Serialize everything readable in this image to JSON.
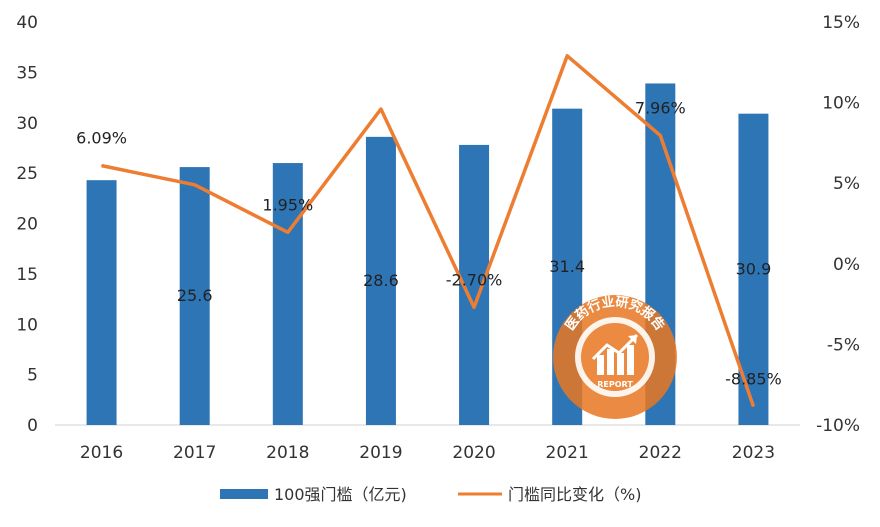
{
  "chart_data": {
    "type": "bar",
    "categories": [
      "2016",
      "2017",
      "2018",
      "2019",
      "2020",
      "2021",
      "2022",
      "2023"
    ],
    "series": [
      {
        "name": "100强门槛（亿元)",
        "type": "bar",
        "axis": "left",
        "color": "#2E75B6",
        "values": [
          24.3,
          25.6,
          26.0,
          28.6,
          27.8,
          31.4,
          33.9,
          30.9
        ],
        "labels": [
          "",
          "25.6",
          "",
          "28.6",
          "",
          "31.4",
          "",
          "30.9"
        ]
      },
      {
        "name": "门槛同比变化（%)",
        "type": "line",
        "axis": "right",
        "color": "#ED7D31",
        "values": [
          6.09,
          4.9,
          1.95,
          9.6,
          -2.7,
          12.9,
          7.96,
          -8.85
        ],
        "labels": [
          "6.09%",
          "",
          "1.95%",
          "",
          "-2.70%",
          "",
          "7.96%",
          "-8.85%"
        ]
      }
    ],
    "y_left": {
      "min": 0,
      "max": 40,
      "ticks": [
        "0",
        "5",
        "10",
        "15",
        "20",
        "25",
        "30",
        "35",
        "40"
      ]
    },
    "y_right": {
      "min": -10,
      "max": 15,
      "ticks": [
        "-10%",
        "-5%",
        "0%",
        "5%",
        "10%",
        "15%"
      ]
    },
    "grid": false,
    "legend_position": "bottom"
  },
  "watermark": {
    "text": "医药行业研究报告",
    "subtext": "REPORT",
    "color": "#E87722"
  }
}
